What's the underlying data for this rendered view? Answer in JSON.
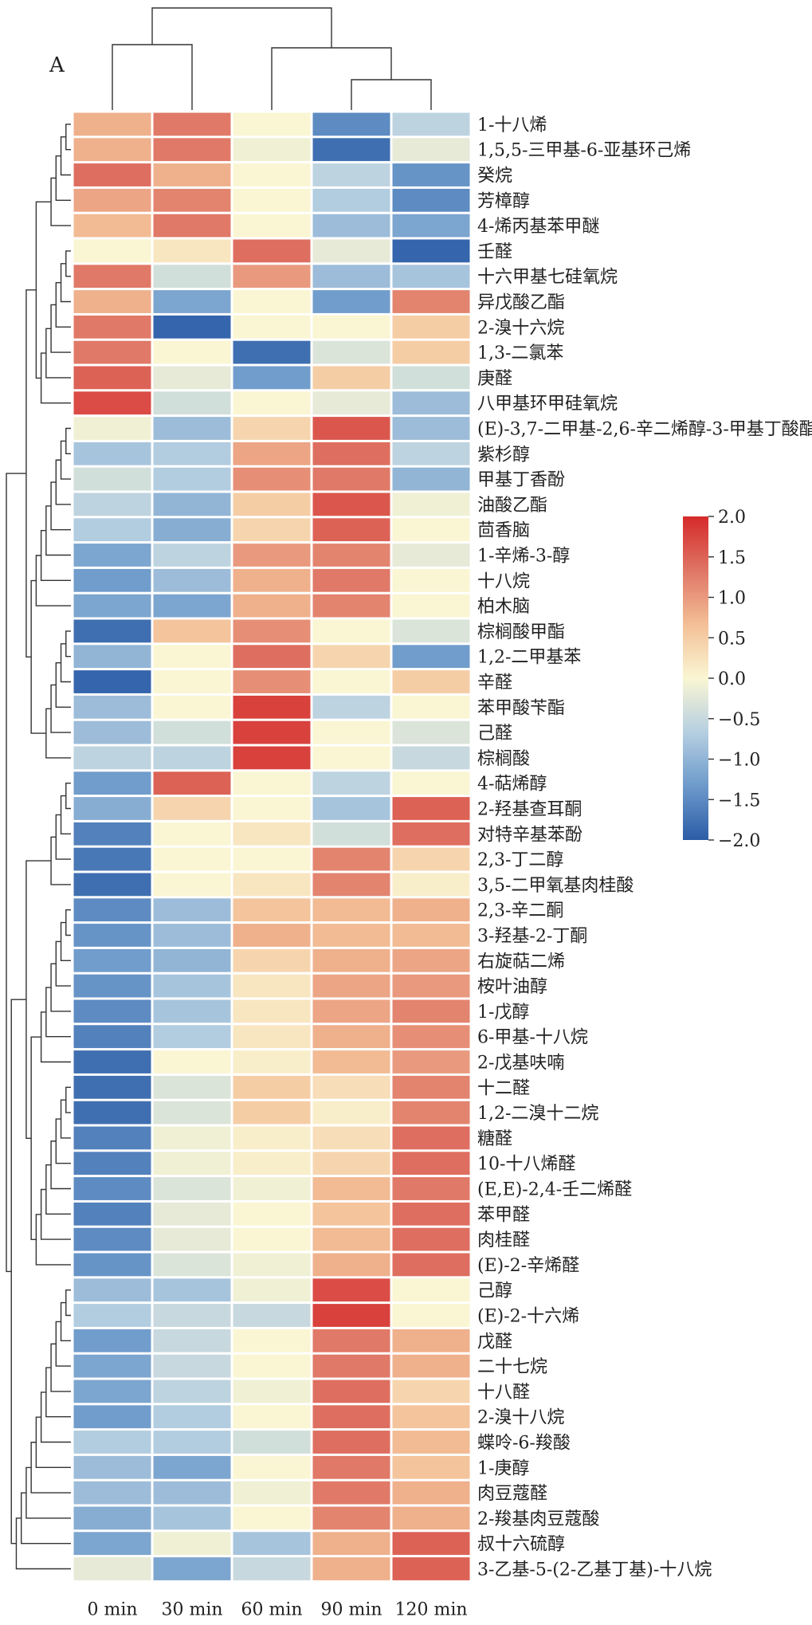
{
  "panel_label": "A",
  "chart_data": {
    "type": "heatmap",
    "columns": [
      "0 min",
      "30 min",
      "60 min",
      "90 min",
      "120 min"
    ],
    "rows": [
      "1-十八烯",
      "1,5,5-三甲基-6-亚基环己烯",
      "癸烷",
      "芳樟醇",
      "4-烯丙基苯甲醚",
      "壬醛",
      "十六甲基七硅氧烷",
      "异戊酸乙酯",
      "2-溴十六烷",
      "1,3-二氯苯",
      "庚醛",
      "八甲基环甲硅氧烷",
      "(E)-3,7-二甲基-2,6-辛二烯醇-3-甲基丁酸酯",
      "紫杉醇",
      "甲基丁香酚",
      "油酸乙酯",
      "茴香脑",
      "1-辛烯-3-醇",
      "十八烷",
      "柏木脑",
      "棕榈酸甲酯",
      "1,2-二甲基苯",
      "辛醛",
      "苯甲酸苄酯",
      "己醛",
      "棕榈酸",
      "4-萜烯醇",
      "2-羟基查耳酮",
      "对特辛基苯酚",
      "2,3-丁二醇",
      "3,5-二甲氧基肉桂酸",
      "2,3-辛二酮",
      "3-羟基-2-丁酮",
      "右旋萜二烯",
      "桉叶油醇",
      "1-戊醇",
      "6-甲基-十八烷",
      "2-戊基呋喃",
      "十二醛",
      "1,2-二溴十二烷",
      "糖醛",
      "10-十八烯醛",
      "(E,E)-2,4-壬二烯醛",
      "苯甲醛",
      "肉桂醛",
      "(E)-2-辛烯醛",
      "己醇",
      "(E)-2-十六烯",
      "戊醛",
      "二十七烷",
      "十八醛",
      "2-溴十八烷",
      "蝶呤-6-羧酸",
      "1-庚醇",
      "肉豆蔻醛",
      "2-羧基肉豆蔻酸",
      "叔十六硫醇",
      "3-乙基-5-(2-乙基丁基)-十八烷"
    ],
    "values": [
      [
        0.8,
        1.3,
        0.0,
        -1.5,
        -0.6
      ],
      [
        0.8,
        1.3,
        -0.1,
        -1.8,
        -0.2
      ],
      [
        1.4,
        0.8,
        0.0,
        -0.6,
        -1.4
      ],
      [
        0.9,
        1.2,
        0.0,
        -0.7,
        -1.5
      ],
      [
        0.7,
        1.3,
        0.0,
        -0.9,
        -1.2
      ],
      [
        0.0,
        0.2,
        1.4,
        -0.2,
        -1.9
      ],
      [
        1.3,
        -0.4,
        1.0,
        -0.9,
        -0.8
      ],
      [
        0.8,
        -1.2,
        0.0,
        -1.3,
        1.2
      ],
      [
        1.3,
        -1.9,
        0.0,
        0.0,
        0.5
      ],
      [
        1.3,
        0.0,
        -1.8,
        -0.3,
        0.5
      ],
      [
        1.5,
        -0.2,
        -1.3,
        0.5,
        -0.4
      ],
      [
        1.7,
        -0.4,
        0.0,
        -0.2,
        -0.9
      ],
      [
        -0.1,
        -0.9,
        0.4,
        1.6,
        -0.9
      ],
      [
        -0.8,
        -0.7,
        0.9,
        1.4,
        -0.6
      ],
      [
        -0.4,
        -0.7,
        1.1,
        1.3,
        -1.0
      ],
      [
        -0.6,
        -1.0,
        0.5,
        1.6,
        -0.1
      ],
      [
        -0.7,
        -1.1,
        0.4,
        1.5,
        0.0
      ],
      [
        -1.2,
        -0.6,
        1.0,
        1.2,
        -0.2
      ],
      [
        -1.3,
        -0.9,
        0.8,
        1.3,
        0.0
      ],
      [
        -1.2,
        -1.2,
        0.8,
        1.2,
        0.0
      ],
      [
        -1.8,
        0.6,
        1.1,
        0.0,
        -0.3
      ],
      [
        -1.0,
        0.0,
        1.4,
        0.4,
        -1.3
      ],
      [
        -1.9,
        0.0,
        1.1,
        0.0,
        0.5
      ],
      [
        -0.9,
        0.0,
        1.8,
        -0.6,
        0.0
      ],
      [
        -0.9,
        -0.4,
        1.8,
        0.0,
        -0.3
      ],
      [
        -0.6,
        -0.6,
        1.8,
        0.0,
        -0.5
      ],
      [
        -1.3,
        1.5,
        0.0,
        -0.6,
        0.0
      ],
      [
        -1.1,
        0.4,
        0.0,
        -0.8,
        1.5
      ],
      [
        -1.6,
        0.0,
        0.2,
        -0.4,
        1.4
      ],
      [
        -1.7,
        0.0,
        0.0,
        1.2,
        0.4
      ],
      [
        -1.8,
        0.0,
        0.2,
        1.2,
        0.1
      ],
      [
        -1.5,
        -0.9,
        0.6,
        0.7,
        0.8
      ],
      [
        -1.4,
        -0.9,
        0.8,
        0.7,
        0.7
      ],
      [
        -1.3,
        -1.0,
        0.4,
        0.8,
        0.9
      ],
      [
        -1.4,
        -0.8,
        0.2,
        0.9,
        1.0
      ],
      [
        -1.5,
        -0.8,
        0.2,
        0.9,
        1.2
      ],
      [
        -1.6,
        -0.7,
        0.2,
        0.8,
        1.1
      ],
      [
        -1.8,
        0.0,
        0.1,
        0.7,
        1.0
      ],
      [
        -1.8,
        -0.3,
        0.5,
        0.3,
        1.2
      ],
      [
        -1.8,
        -0.3,
        0.5,
        0.1,
        1.2
      ],
      [
        -1.6,
        -0.1,
        0.1,
        0.3,
        1.4
      ],
      [
        -1.6,
        -0.1,
        0.1,
        0.4,
        1.4
      ],
      [
        -1.5,
        -0.3,
        -0.1,
        0.7,
        1.3
      ],
      [
        -1.6,
        -0.2,
        0.0,
        0.6,
        1.4
      ],
      [
        -1.5,
        -0.2,
        0.0,
        0.7,
        1.4
      ],
      [
        -1.4,
        -0.3,
        -0.1,
        0.8,
        1.4
      ],
      [
        -0.9,
        -0.8,
        -0.1,
        1.7,
        0.0
      ],
      [
        -0.7,
        -0.5,
        -0.5,
        1.8,
        0.0
      ],
      [
        -1.3,
        -0.5,
        0.0,
        1.3,
        0.8
      ],
      [
        -1.2,
        -0.5,
        0.0,
        1.3,
        0.8
      ],
      [
        -1.2,
        -0.6,
        -0.1,
        1.4,
        0.4
      ],
      [
        -1.3,
        -0.7,
        0.0,
        1.4,
        0.6
      ],
      [
        -0.7,
        -0.7,
        -0.4,
        1.4,
        0.7
      ],
      [
        -0.9,
        -1.2,
        0.0,
        1.3,
        0.6
      ],
      [
        -0.9,
        -0.9,
        -0.1,
        1.3,
        0.8
      ],
      [
        -1.1,
        -0.8,
        0.0,
        1.2,
        0.8
      ],
      [
        -1.2,
        -0.1,
        -0.8,
        0.8,
        1.5
      ],
      [
        -0.2,
        -1.2,
        -0.5,
        0.8,
        1.5
      ]
    ],
    "colorbar": {
      "min": -2.0,
      "max": 2.0,
      "ticks": [
        2.0,
        1.5,
        1.0,
        0.5,
        0.0,
        -0.5,
        -1.0,
        -1.5,
        -2.0
      ],
      "tick_labels": [
        "2.0",
        "1.5",
        "1.0",
        "0.5",
        "0.0",
        "−0.5",
        "−1.0",
        "−1.5",
        "−2.0"
      ],
      "colors": [
        "#2b5ca6",
        "#6d9acb",
        "#b6cfe1",
        "#faf6d3",
        "#f3bf96",
        "#df7565",
        "#d52a2a"
      ]
    },
    "row_dendrogram": true,
    "column_dendrogram": true
  }
}
